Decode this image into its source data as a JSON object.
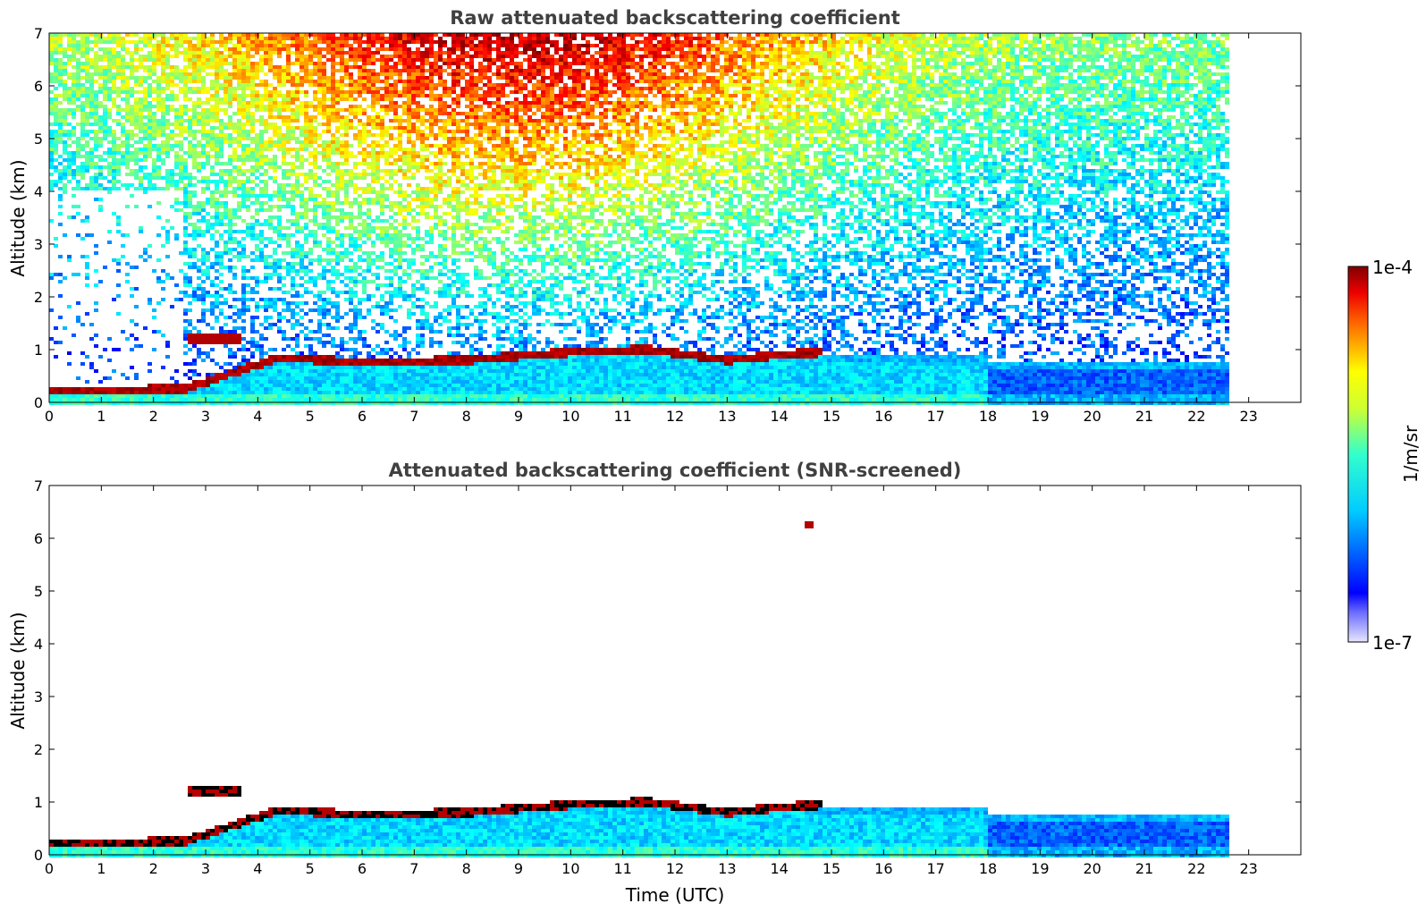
{
  "chart_data": [
    {
      "type": "heatmap",
      "title": "Raw attenuated backscattering coefficient",
      "xlabel": "",
      "ylabel": "Altitude (km)",
      "xlim": [
        0,
        24
      ],
      "ylim": [
        0,
        7
      ],
      "xticks": [
        "0",
        "1",
        "2",
        "3",
        "4",
        "5",
        "6",
        "7",
        "8",
        "9",
        "10",
        "11",
        "12",
        "13",
        "14",
        "15",
        "16",
        "17",
        "18",
        "19",
        "20",
        "21",
        "22",
        "23"
      ],
      "yticks": [
        "0",
        "1",
        "2",
        "3",
        "4",
        "5",
        "6",
        "7"
      ],
      "data_end_time": 22.65,
      "boundary_layer_top_km": [
        [
          0,
          0.22
        ],
        [
          2.6,
          0.25
        ],
        [
          4.4,
          0.85
        ],
        [
          6,
          0.75
        ],
        [
          8,
          0.8
        ],
        [
          10,
          0.95
        ],
        [
          11.5,
          1.0
        ],
        [
          13,
          0.8
        ],
        [
          14,
          0.9
        ],
        [
          14.8,
          0.95
        ]
      ],
      "elevated_layer": {
        "x": [
          2.65,
          3.7
        ],
        "y_km": 1.2
      },
      "high_feature": {
        "x": 14.6,
        "y_km": 6.27
      }
    },
    {
      "type": "heatmap",
      "title": "Attenuated backscattering coefficient (SNR-screened)",
      "xlabel": "Time (UTC)",
      "ylabel": "Altitude (km)",
      "xlim": [
        0,
        24
      ],
      "ylim": [
        0,
        7
      ],
      "xticks": [
        "0",
        "1",
        "2",
        "3",
        "4",
        "5",
        "6",
        "7",
        "8",
        "9",
        "10",
        "11",
        "12",
        "13",
        "14",
        "15",
        "16",
        "17",
        "18",
        "19",
        "20",
        "21",
        "22",
        "23"
      ],
      "yticks": [
        "0",
        "1",
        "2",
        "3",
        "4",
        "5",
        "6",
        "7"
      ],
      "data_end_time": 22.65
    }
  ],
  "colorbar": {
    "label": "1/m/sr",
    "max_label": "1e-4",
    "min_label": "1e-7",
    "colormap": "jet",
    "scale": "log"
  }
}
